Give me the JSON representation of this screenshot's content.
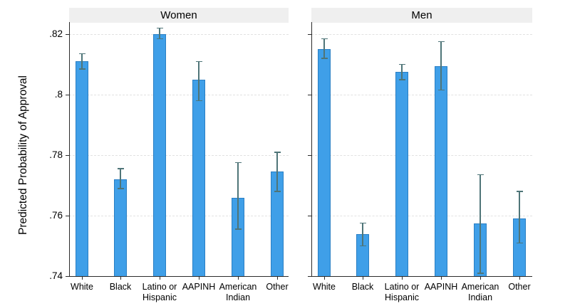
{
  "figure": {
    "ylabel": "Predicted Probability of Approval",
    "colors": {
      "bar_fill": "#3f9fe8",
      "bar_border": "#2a7fc4",
      "error_bar": "#4f7578",
      "panel_title_bg": "#efefef",
      "axis": "#2b2b2b",
      "grid": "#e2e2e2",
      "background": "#ffffff"
    }
  },
  "chart_data": {
    "type": "bar",
    "title": "",
    "xlabel": "",
    "ylabel": "Predicted Probability of Approval",
    "ylim": [
      0.74,
      0.82
    ],
    "ytick_values": [
      0.74,
      0.76,
      0.78,
      0.8,
      0.82
    ],
    "ytick_labels": [
      ".74",
      ".76",
      ".78",
      ".8",
      ".82"
    ],
    "grid": true,
    "error_bars": true,
    "legend": "none",
    "categories": [
      "White",
      "Black",
      "Latino or\nHispanic",
      "AAPINH",
      "American\nIndian",
      "Other"
    ],
    "panels": [
      {
        "title": "Women",
        "values": [
          0.811,
          0.772,
          0.82,
          0.805,
          0.766,
          0.7745
        ],
        "ci_low": [
          0.8085,
          0.769,
          0.8185,
          0.798,
          0.7555,
          0.768
        ],
        "ci_high": [
          0.8135,
          0.7755,
          0.822,
          0.811,
          0.7775,
          0.781
        ]
      },
      {
        "title": "Men",
        "values": [
          0.815,
          0.754,
          0.8075,
          0.8095,
          0.7575,
          0.759
        ],
        "ci_low": [
          0.812,
          0.75,
          0.805,
          0.8015,
          0.741,
          0.751
        ],
        "ci_high": [
          0.8185,
          0.7575,
          0.81,
          0.8175,
          0.7735,
          0.768
        ]
      }
    ]
  }
}
